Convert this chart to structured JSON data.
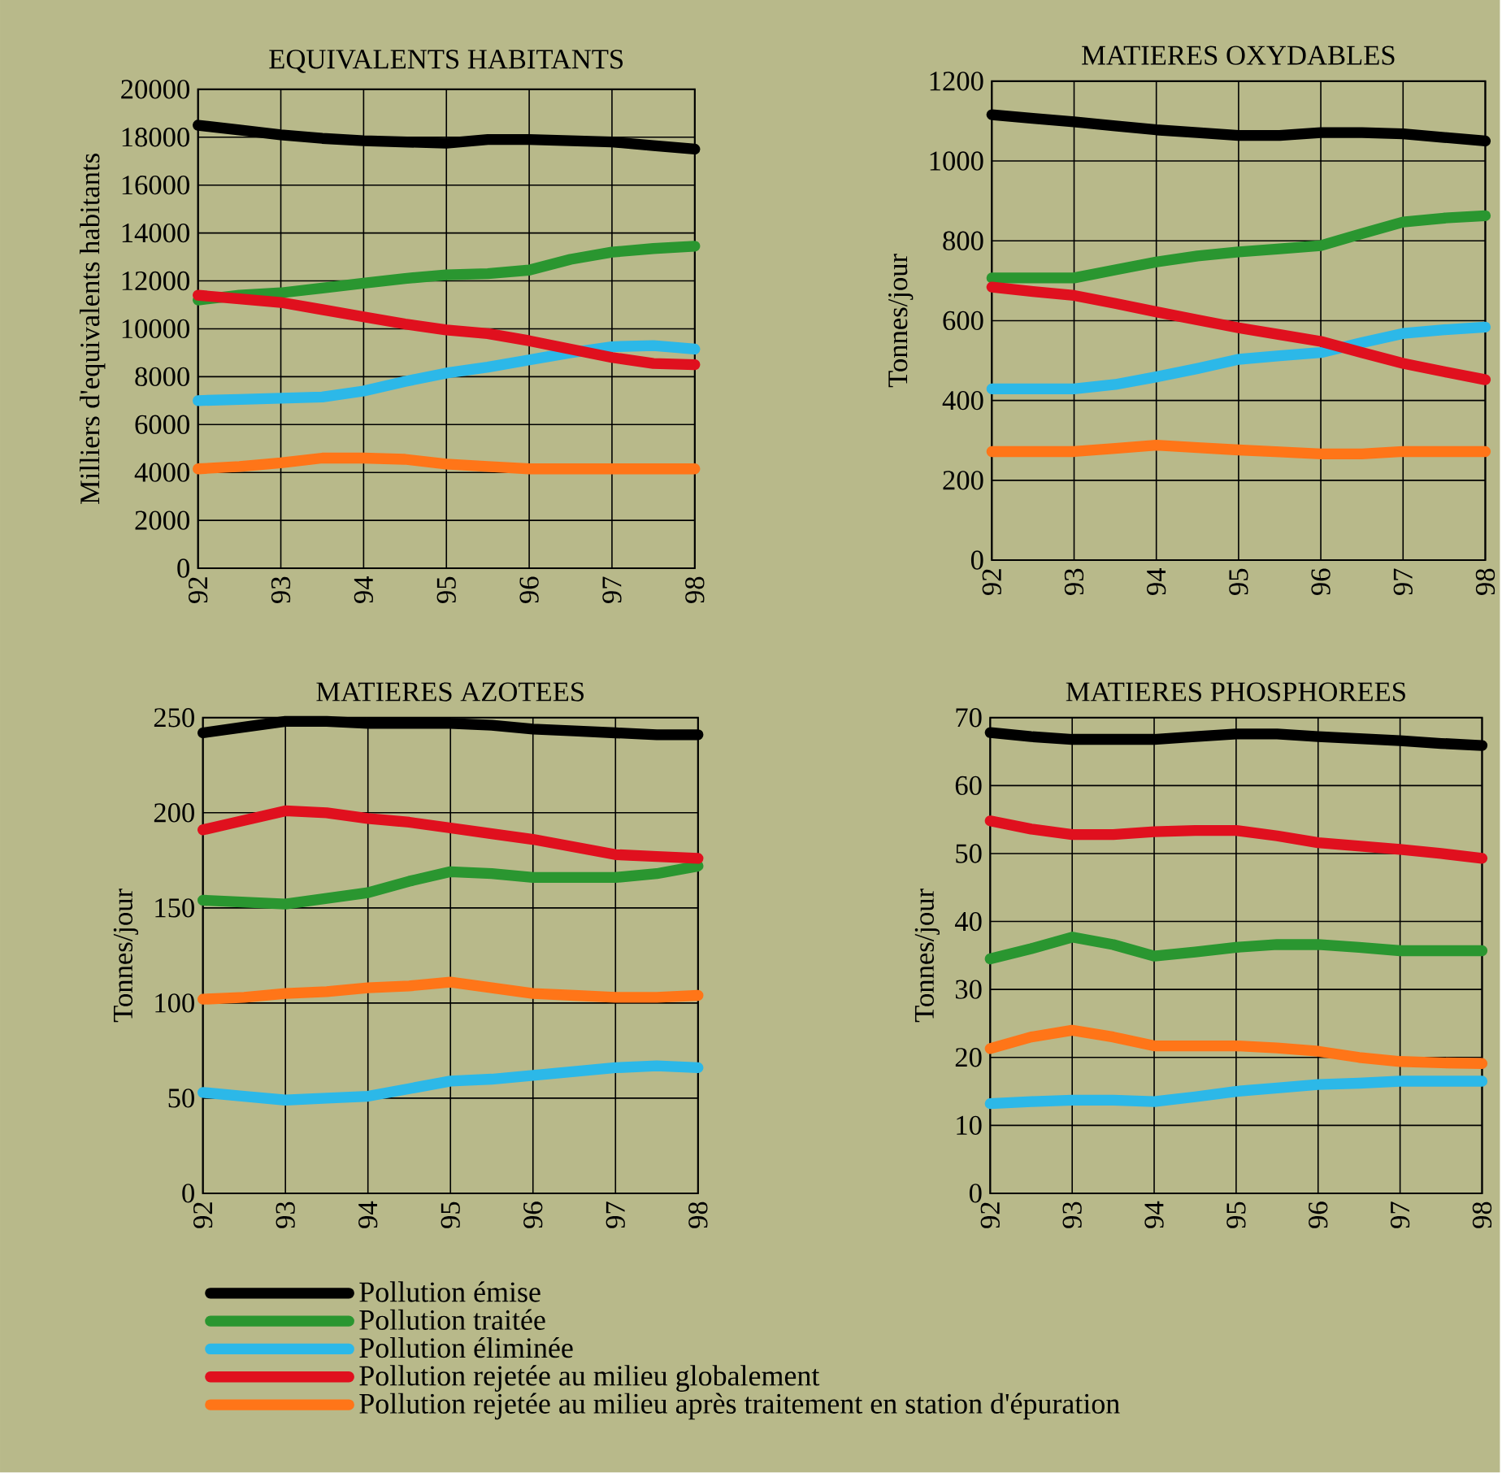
{
  "chart_data": [
    {
      "type": "line",
      "title": "EQUIVALENTS HABITANTS",
      "ylabel": "Milliers d'equivalents habitants",
      "x": [
        92,
        92.5,
        93,
        93.5,
        94,
        94.5,
        95,
        95.5,
        96,
        96.5,
        97,
        97.5,
        98
      ],
      "xlim": [
        92,
        98
      ],
      "xticks": [
        92,
        93,
        94,
        95,
        96,
        97,
        98
      ],
      "ylim": [
        0,
        20000
      ],
      "yticks": [
        0,
        2000,
        4000,
        6000,
        8000,
        10000,
        12000,
        14000,
        16000,
        18000,
        20000
      ],
      "grid": true,
      "legend": "bottom",
      "series": [
        {
          "name": "Pollution émise",
          "color": "#000000",
          "values": [
            18500,
            18300,
            18100,
            17950,
            17850,
            17800,
            17750,
            17900,
            17900,
            17850,
            17800,
            17650,
            17500
          ]
        },
        {
          "name": "Pollution traitée",
          "color": "#2a9630",
          "values": [
            11200,
            11400,
            11500,
            11700,
            11900,
            12100,
            12250,
            12300,
            12450,
            12900,
            13200,
            13350,
            13450
          ]
        },
        {
          "name": "Pollution éliminée",
          "color": "#2cb8e8",
          "values": [
            7000,
            7050,
            7100,
            7150,
            7400,
            7800,
            8150,
            8400,
            8700,
            9000,
            9250,
            9300,
            9150
          ]
        },
        {
          "name": "Pollution rejetée au milieu globalement",
          "color": "#e0101e",
          "values": [
            11400,
            11250,
            11100,
            10800,
            10500,
            10200,
            9950,
            9800,
            9500,
            9150,
            8800,
            8550,
            8500
          ]
        },
        {
          "name": "Pollution rejetée au milieu après traitement en station d'épuration",
          "color": "#ff7518",
          "values": [
            4150,
            4250,
            4400,
            4600,
            4600,
            4550,
            4350,
            4250,
            4150,
            4150,
            4150,
            4150,
            4150
          ]
        }
      ]
    },
    {
      "type": "line",
      "title": "MATIERES OXYDABLES",
      "ylabel": "Tonnes/jour",
      "x": [
        92,
        92.5,
        93,
        93.5,
        94,
        94.5,
        95,
        95.5,
        96,
        96.5,
        97,
        97.5,
        98
      ],
      "xlim": [
        92,
        98
      ],
      "xticks": [
        92,
        93,
        94,
        95,
        96,
        97,
        98
      ],
      "ylim": [
        0,
        1200
      ],
      "yticks": [
        0,
        200,
        400,
        600,
        800,
        1000,
        1200
      ],
      "grid": true,
      "series": [
        {
          "color": "#000000",
          "values": [
            1116,
            1107,
            1098,
            1088,
            1078,
            1071,
            1064,
            1064,
            1071,
            1071,
            1068,
            1059,
            1050
          ]
        },
        {
          "color": "#2a9630",
          "values": [
            707,
            707,
            707,
            727,
            747,
            762,
            772,
            780,
            788,
            818,
            847,
            857,
            863
          ]
        },
        {
          "color": "#2cb8e8",
          "values": [
            429,
            429,
            429,
            440,
            459,
            480,
            503,
            512,
            520,
            545,
            568,
            577,
            584
          ]
        },
        {
          "color": "#e0101e",
          "values": [
            684,
            673,
            663,
            643,
            622,
            602,
            582,
            565,
            548,
            520,
            493,
            472,
            452
          ]
        },
        {
          "color": "#ff7518",
          "values": [
            272,
            272,
            272,
            280,
            288,
            282,
            276,
            271,
            266,
            266,
            272,
            272,
            272
          ]
        }
      ]
    },
    {
      "type": "line",
      "title": "MATIERES AZOTEES",
      "ylabel": "Tonnes/jour",
      "x": [
        92,
        92.5,
        93,
        93.5,
        94,
        94.5,
        95,
        95.5,
        96,
        96.5,
        97,
        97.5,
        98
      ],
      "xlim": [
        92,
        98
      ],
      "xticks": [
        92,
        93,
        94,
        95,
        96,
        97,
        98
      ],
      "ylim": [
        0,
        250
      ],
      "yticks": [
        0,
        50,
        100,
        150,
        200,
        250
      ],
      "grid": true,
      "series": [
        {
          "color": "#000000",
          "values": [
            242,
            245,
            248,
            248,
            247,
            247,
            247,
            246,
            244,
            243,
            242,
            241,
            241
          ]
        },
        {
          "color": "#2a9630",
          "values": [
            154,
            153,
            152,
            155,
            158,
            164,
            169,
            168,
            166,
            166,
            166,
            168,
            172
          ]
        },
        {
          "color": "#2cb8e8",
          "values": [
            53,
            51,
            49,
            50,
            51,
            55,
            59,
            60,
            62,
            64,
            66,
            67,
            66
          ]
        },
        {
          "color": "#e0101e",
          "values": [
            191,
            196,
            201,
            200,
            197,
            195,
            192,
            189,
            186,
            182,
            178,
            177,
            176
          ]
        },
        {
          "color": "#ff7518",
          "values": [
            102,
            103,
            105,
            106,
            108,
            109,
            111,
            108,
            105,
            104,
            103,
            103,
            104
          ]
        }
      ]
    },
    {
      "type": "line",
      "title": "MATIERES PHOSPHOREES",
      "ylabel": "Tonnes/jour",
      "x": [
        92,
        92.5,
        93,
        93.5,
        94,
        94.5,
        95,
        95.5,
        96,
        96.5,
        97,
        97.5,
        98
      ],
      "xlim": [
        92,
        98
      ],
      "xticks": [
        92,
        93,
        94,
        95,
        96,
        97,
        98
      ],
      "ylim": [
        0,
        70
      ],
      "yticks": [
        0,
        10,
        20,
        30,
        40,
        50,
        60,
        70
      ],
      "grid": true,
      "series": [
        {
          "color": "#000000",
          "values": [
            67.8,
            67.2,
            66.8,
            66.8,
            66.8,
            67.2,
            67.6,
            67.6,
            67.2,
            66.9,
            66.6,
            66.2,
            65.9
          ]
        },
        {
          "color": "#2a9630",
          "values": [
            34.5,
            36,
            37.7,
            36.6,
            34.9,
            35.5,
            36.2,
            36.6,
            36.6,
            36.2,
            35.7,
            35.7,
            35.7
          ]
        },
        {
          "color": "#2cb8e8",
          "values": [
            13.2,
            13.5,
            13.7,
            13.7,
            13.5,
            14.2,
            15,
            15.5,
            16,
            16.2,
            16.5,
            16.5,
            16.5
          ]
        },
        {
          "color": "#e0101e",
          "values": [
            54.8,
            53.6,
            52.8,
            52.8,
            53.2,
            53.4,
            53.4,
            52.6,
            51.6,
            51.1,
            50.6,
            50,
            49.3
          ]
        },
        {
          "color": "#ff7518",
          "values": [
            21.3,
            23,
            24,
            23,
            21.7,
            21.7,
            21.7,
            21.4,
            20.9,
            20,
            19.4,
            19.2,
            19.1
          ]
        }
      ]
    }
  ]
}
